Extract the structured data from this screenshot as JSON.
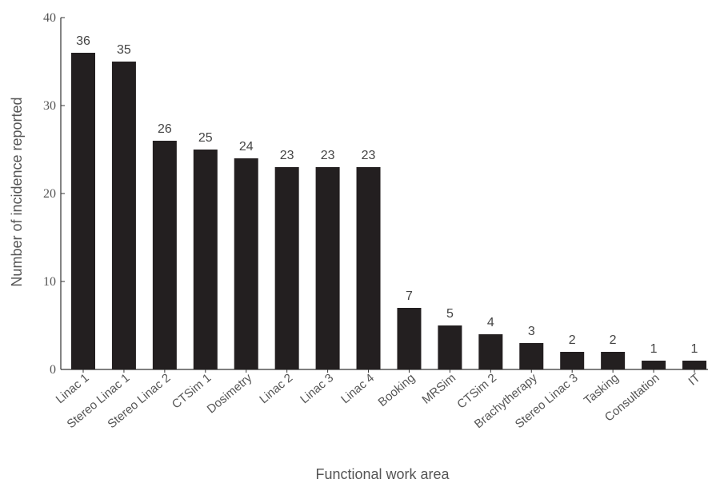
{
  "chart_data": {
    "type": "bar",
    "title": "",
    "xlabel": "Functional work area",
    "ylabel": "Number of incidence reported",
    "ylim": [
      0,
      40
    ],
    "yticks": [
      0,
      10,
      20,
      30,
      40
    ],
    "grid": false,
    "categories": [
      "Linac 1",
      "Stereo Linac 1",
      "Stereo Linac 2",
      "CTSim 1",
      "Dosimetry",
      "Linac 2",
      "Linac 3",
      "Linac 4",
      "Booking",
      "MRSim",
      "CTSim 2",
      "Brachytherapy",
      "Stereo Linac 3",
      "Tasking",
      "Consultation",
      "IT"
    ],
    "values": [
      36,
      35,
      26,
      25,
      24,
      23,
      23,
      23,
      7,
      5,
      4,
      3,
      2,
      2,
      1,
      1
    ],
    "bar_color": "#231f20"
  }
}
